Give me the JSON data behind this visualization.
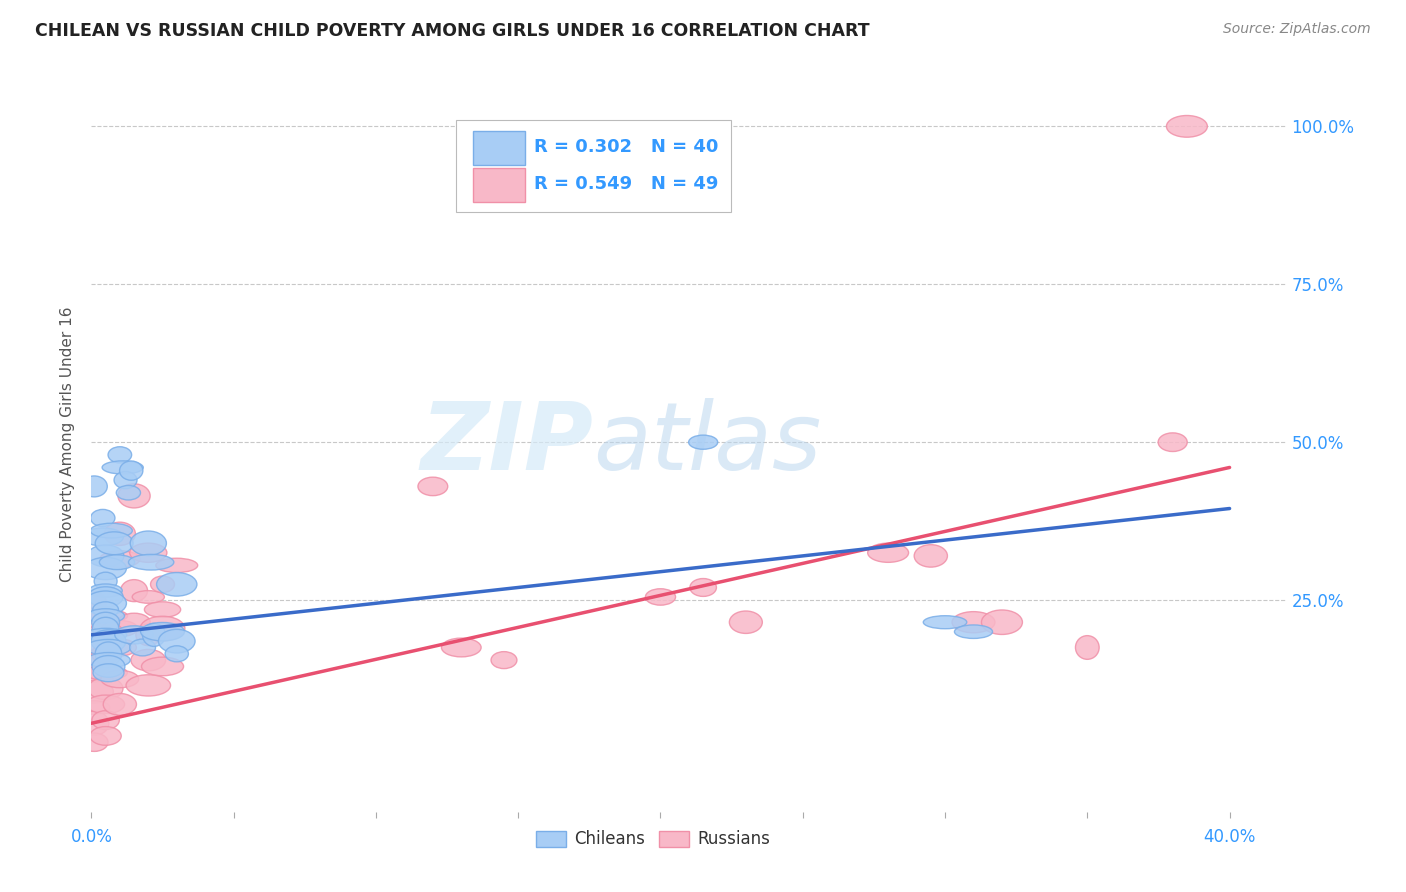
{
  "title": "CHILEAN VS RUSSIAN CHILD POVERTY AMONG GIRLS UNDER 16 CORRELATION CHART",
  "source": "Source: ZipAtlas.com",
  "ylabel": "Child Poverty Among Girls Under 16",
  "ytick_labels": [
    "100.0%",
    "75.0%",
    "50.0%",
    "25.0%"
  ],
  "ytick_values": [
    1.0,
    0.75,
    0.5,
    0.25
  ],
  "xlim": [
    0.0,
    0.42
  ],
  "ylim": [
    -0.085,
    1.08
  ],
  "plot_xlim": [
    0.0,
    0.4
  ],
  "chilean_color_edge": "#7aaee8",
  "chilean_color_fill": "#a8cdf5",
  "chilean_line_color": "#3a6bc9",
  "russian_color_edge": "#f090a8",
  "russian_color_fill": "#f8b8c8",
  "russian_line_color": "#e85070",
  "text_blue": "#3399FF",
  "watermark_color": "#cce5f5",
  "legend": {
    "chilean_R": "0.302",
    "chilean_N": "40",
    "russian_R": "0.549",
    "russian_N": "49"
  },
  "chilean_points": [
    [
      0.001,
      0.43
    ],
    [
      0.004,
      0.38
    ],
    [
      0.004,
      0.35
    ],
    [
      0.005,
      0.32
    ],
    [
      0.005,
      0.3
    ],
    [
      0.005,
      0.28
    ],
    [
      0.005,
      0.265
    ],
    [
      0.005,
      0.255
    ],
    [
      0.005,
      0.245
    ],
    [
      0.005,
      0.235
    ],
    [
      0.005,
      0.225
    ],
    [
      0.005,
      0.215
    ],
    [
      0.005,
      0.205
    ],
    [
      0.005,
      0.195
    ],
    [
      0.006,
      0.185
    ],
    [
      0.006,
      0.175
    ],
    [
      0.006,
      0.165
    ],
    [
      0.006,
      0.155
    ],
    [
      0.006,
      0.145
    ],
    [
      0.007,
      0.36
    ],
    [
      0.008,
      0.34
    ],
    [
      0.009,
      0.31
    ],
    [
      0.01,
      0.48
    ],
    [
      0.011,
      0.46
    ],
    [
      0.012,
      0.44
    ],
    [
      0.013,
      0.42
    ],
    [
      0.014,
      0.455
    ],
    [
      0.015,
      0.195
    ],
    [
      0.018,
      0.175
    ],
    [
      0.02,
      0.34
    ],
    [
      0.021,
      0.31
    ],
    [
      0.022,
      0.195
    ],
    [
      0.025,
      0.2
    ],
    [
      0.03,
      0.275
    ],
    [
      0.03,
      0.185
    ],
    [
      0.03,
      0.165
    ],
    [
      0.215,
      0.5
    ],
    [
      0.3,
      0.215
    ],
    [
      0.31,
      0.2
    ],
    [
      0.006,
      0.135
    ]
  ],
  "russian_points": [
    [
      0.001,
      0.245
    ],
    [
      0.001,
      0.22
    ],
    [
      0.001,
      0.185
    ],
    [
      0.001,
      0.16
    ],
    [
      0.001,
      0.135
    ],
    [
      0.001,
      0.105
    ],
    [
      0.001,
      0.08
    ],
    [
      0.001,
      0.055
    ],
    [
      0.001,
      0.025
    ],
    [
      0.005,
      0.225
    ],
    [
      0.005,
      0.195
    ],
    [
      0.005,
      0.165
    ],
    [
      0.005,
      0.135
    ],
    [
      0.005,
      0.11
    ],
    [
      0.005,
      0.085
    ],
    [
      0.005,
      0.06
    ],
    [
      0.005,
      0.035
    ],
    [
      0.01,
      0.355
    ],
    [
      0.01,
      0.315
    ],
    [
      0.01,
      0.205
    ],
    [
      0.01,
      0.175
    ],
    [
      0.01,
      0.125
    ],
    [
      0.01,
      0.085
    ],
    [
      0.015,
      0.415
    ],
    [
      0.015,
      0.265
    ],
    [
      0.015,
      0.215
    ],
    [
      0.02,
      0.325
    ],
    [
      0.02,
      0.255
    ],
    [
      0.02,
      0.195
    ],
    [
      0.02,
      0.155
    ],
    [
      0.02,
      0.115
    ],
    [
      0.025,
      0.275
    ],
    [
      0.025,
      0.235
    ],
    [
      0.025,
      0.205
    ],
    [
      0.025,
      0.145
    ],
    [
      0.03,
      0.305
    ],
    [
      0.12,
      0.43
    ],
    [
      0.13,
      0.175
    ],
    [
      0.145,
      0.155
    ],
    [
      0.2,
      0.255
    ],
    [
      0.215,
      0.27
    ],
    [
      0.23,
      0.215
    ],
    [
      0.28,
      0.325
    ],
    [
      0.295,
      0.32
    ],
    [
      0.31,
      0.215
    ],
    [
      0.32,
      0.215
    ],
    [
      0.35,
      0.175
    ],
    [
      0.38,
      0.5
    ],
    [
      0.385,
      1.0
    ]
  ],
  "chilean_trendline": [
    [
      0.0,
      0.195
    ],
    [
      0.4,
      0.395
    ]
  ],
  "russian_trendline": [
    [
      0.0,
      0.055
    ],
    [
      0.4,
      0.46
    ]
  ],
  "grid_color": "#c8c8c8",
  "grid_style": "--",
  "marker_size_min": 300,
  "marker_size_max": 600
}
